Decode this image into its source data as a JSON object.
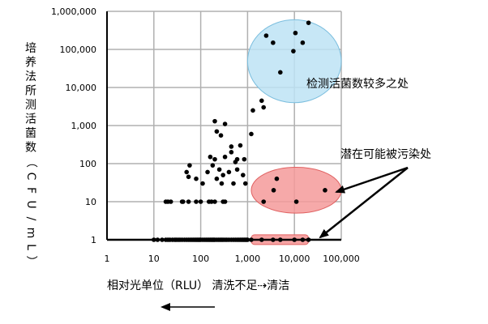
{
  "chart_data": {
    "type": "scatter",
    "xlabel": "相对光单位（RLU） 清洗不足⇢清洁",
    "ylabel": "培养法所测活菌数（CFU/mL）",
    "x_scale": "log",
    "y_scale": "log",
    "xlim": [
      1,
      100000
    ],
    "ylim": [
      1,
      1000000
    ],
    "x_ticks": [
      "1",
      "10",
      "100",
      "1,000",
      "10,000",
      "100,000"
    ],
    "y_ticks": [
      "1",
      "10",
      "100",
      "1,000",
      "10,000",
      "100,000",
      "1,000,000"
    ],
    "grid": true,
    "annotations": {
      "high": "检测活菌数较多之处",
      "contam": "潜在可能被污染处"
    },
    "regions": [
      {
        "name": "high-count",
        "shape": "ellipse",
        "x": [
          1000,
          100000
        ],
        "y": [
          4000,
          600000
        ],
        "color": "#bde3f5",
        "edge": "#7bbede"
      },
      {
        "name": "possible-contamination-mid",
        "shape": "ellipse",
        "x": [
          1200,
          100000
        ],
        "y": [
          5,
          80
        ],
        "color": "#f59a9a",
        "edge": "#e06060"
      },
      {
        "name": "possible-contamination-low",
        "shape": "rect",
        "x": [
          1200,
          20000
        ],
        "y": [
          0.75,
          1.35
        ],
        "color": "#f59a9a",
        "edge": "#e06060"
      }
    ],
    "series": [
      {
        "points": [
          [
            10,
            1
          ],
          [
            12,
            1
          ],
          [
            15,
            1
          ],
          [
            18,
            1
          ],
          [
            20,
            1
          ],
          [
            22,
            1
          ],
          [
            25,
            1
          ],
          [
            28,
            1
          ],
          [
            30,
            1
          ],
          [
            33,
            1
          ],
          [
            36,
            1
          ],
          [
            40,
            1
          ],
          [
            45,
            1
          ],
          [
            50,
            1
          ],
          [
            55,
            1
          ],
          [
            60,
            1
          ],
          [
            65,
            1
          ],
          [
            70,
            1
          ],
          [
            75,
            1
          ],
          [
            80,
            1
          ],
          [
            85,
            1
          ],
          [
            90,
            1
          ],
          [
            95,
            1
          ],
          [
            100,
            1
          ],
          [
            110,
            1
          ],
          [
            120,
            1
          ],
          [
            130,
            1
          ],
          [
            140,
            1
          ],
          [
            150,
            1
          ],
          [
            160,
            1
          ],
          [
            170,
            1
          ],
          [
            180,
            1
          ],
          [
            190,
            1
          ],
          [
            200,
            1
          ],
          [
            220,
            1
          ],
          [
            240,
            1
          ],
          [
            260,
            1
          ],
          [
            280,
            1
          ],
          [
            300,
            1
          ],
          [
            330,
            1
          ],
          [
            360,
            1
          ],
          [
            400,
            1
          ],
          [
            450,
            1
          ],
          [
            500,
            1
          ],
          [
            550,
            1
          ],
          [
            600,
            1
          ],
          [
            650,
            1
          ],
          [
            700,
            1
          ],
          [
            750,
            1
          ],
          [
            800,
            1
          ],
          [
            850,
            1
          ],
          [
            900,
            1
          ],
          [
            950,
            1
          ],
          [
            1000,
            1
          ],
          [
            18,
            10
          ],
          [
            20,
            10
          ],
          [
            23,
            10
          ],
          [
            40,
            10
          ],
          [
            42,
            10
          ],
          [
            55,
            10
          ],
          [
            80,
            10
          ],
          [
            100,
            10
          ],
          [
            150,
            10
          ],
          [
            170,
            10
          ],
          [
            200,
            10
          ],
          [
            300,
            10
          ],
          [
            330,
            10
          ],
          [
            50,
            60
          ],
          [
            55,
            45
          ],
          [
            58,
            90
          ],
          [
            80,
            40
          ],
          [
            110,
            30
          ],
          [
            140,
            60
          ],
          [
            160,
            150
          ],
          [
            180,
            90
          ],
          [
            200,
            130
          ],
          [
            220,
            40
          ],
          [
            250,
            70
          ],
          [
            280,
            30
          ],
          [
            300,
            50
          ],
          [
            330,
            150
          ],
          [
            400,
            60
          ],
          [
            450,
            200
          ],
          [
            500,
            30
          ],
          [
            550,
            110
          ],
          [
            600,
            70
          ],
          [
            700,
            300
          ],
          [
            850,
            130
          ],
          [
            200,
            1300
          ],
          [
            220,
            700
          ],
          [
            270,
            550
          ],
          [
            330,
            1100
          ],
          [
            450,
            280
          ],
          [
            600,
            130
          ],
          [
            800,
            50
          ],
          [
            900,
            30
          ],
          [
            1200,
            600
          ],
          [
            1300,
            2500
          ],
          [
            2000,
            4500
          ],
          [
            2200,
            3000
          ],
          [
            2500,
            230000
          ],
          [
            3500,
            150000
          ],
          [
            5000,
            25000
          ],
          [
            9500,
            90000
          ],
          [
            10500,
            270000
          ],
          [
            15000,
            150000
          ],
          [
            20000,
            500000
          ]
        ]
      },
      {
        "points": [
          [
            1200,
            1
          ],
          [
            2000,
            1
          ],
          [
            3500,
            1
          ],
          [
            5000,
            1
          ],
          [
            10000,
            1
          ],
          [
            15000,
            1
          ],
          [
            20000,
            1
          ],
          [
            2200,
            10
          ],
          [
            3600,
            20
          ],
          [
            4200,
            40
          ],
          [
            11000,
            10
          ],
          [
            45000,
            20
          ]
        ]
      }
    ]
  }
}
